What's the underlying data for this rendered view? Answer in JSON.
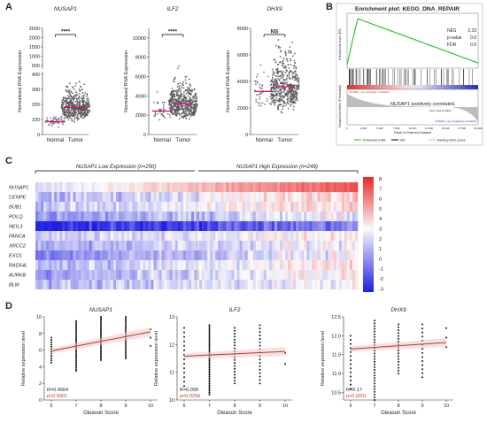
{
  "panels": {
    "A": "A",
    "B": "B",
    "C": "C",
    "D": "D"
  },
  "chart_data": [
    {
      "type": "scatter",
      "panel": "A",
      "title": "NUSAP1",
      "ylabel": "Normalized RNA Expression",
      "categories": [
        "Normal",
        "Tumor"
      ],
      "significance": "****",
      "yticks_upper": [
        "500",
        "1000",
        "1500",
        "2000",
        "2500"
      ],
      "yticks_lower": [
        "0",
        "100",
        "200",
        "300",
        "400"
      ],
      "medians": [
        95,
        180
      ]
    },
    {
      "type": "scatter",
      "panel": "A",
      "title": "ILF2",
      "ylabel": "Normalized RNA Expression",
      "categories": [
        "Normal",
        "Tumor"
      ],
      "significance": "****",
      "yticks": [
        "0",
        "2000",
        "4000",
        "6000",
        "8000",
        "10000"
      ],
      "ylim": [
        0,
        11000
      ],
      "medians": [
        2700,
        3200
      ]
    },
    {
      "type": "scatter",
      "panel": "A",
      "title": "DHX9",
      "ylabel": "Normalized RNA Expression",
      "categories": [
        "Normal",
        "Tumor"
      ],
      "significance": "NS",
      "yticks": [
        "0",
        "2000",
        "4000",
        "6000",
        "8000"
      ],
      "ylim": [
        0,
        8000
      ],
      "medians": [
        3600,
        3600
      ]
    },
    {
      "type": "line",
      "panel": "B",
      "title": "Enrichment plot: KEGG_DNA_REPAIR",
      "stats": [
        {
          "label": "NES",
          "value": "2.33"
        },
        {
          "label": "p-value",
          "value": "0.0"
        },
        {
          "label": "FDR",
          "value": "0.0"
        }
      ],
      "annotation": "NUSAP1 positively correlated.",
      "annotation_small": "Zero cross at 11110",
      "pos_label": "'NUSAP1_pos' (positively correlated)",
      "neg_label": "'NUSAP1_neg' (negatively correlated)",
      "ylabel_top": "Enrichment score (ES)",
      "ylabel_bottom": "Ranked list metric (Preranked)",
      "xlabel": "Rank in Ordered Dataset",
      "xticks": [
        "0",
        "2,500",
        "5,000",
        "7,500",
        "10,000",
        "12,500",
        "15,000",
        "17,500",
        "20,000"
      ],
      "legend": [
        "Enrichment profile",
        "Hits",
        "Ranking metric scores"
      ]
    },
    {
      "type": "heatmap",
      "panel": "C",
      "low_group": "NUSAP1 Low Expression (n=250)",
      "high_group": "NUSAP1 High Expression (n=249)",
      "rows": [
        "NUSAP1",
        "CENPE",
        "BUB1",
        "POLQ",
        "NEIL3",
        "FANCA",
        "XRCC2",
        "EXO1",
        "RAD54L",
        "AURKB",
        "BLM"
      ],
      "colorbar_ticks": [
        "8",
        "7",
        "6",
        "5",
        "4",
        "3",
        "2",
        "1",
        "0",
        "-1",
        "-2",
        "-3"
      ]
    },
    {
      "type": "scatter",
      "panel": "D",
      "title": "NUSAP1",
      "xlabel": "Gleason Score",
      "ylabel": "Relative expression level",
      "x": [
        6,
        7,
        8,
        9,
        10
      ],
      "xticks": [
        "6",
        "7",
        "8",
        "9",
        "10"
      ],
      "yticks": [
        "0",
        "2",
        "4",
        "6",
        "8",
        "10"
      ],
      "ylim": [
        0,
        10
      ],
      "r": "R=0.4564",
      "p": "p<0.0001"
    },
    {
      "type": "scatter",
      "panel": "D",
      "title": "ILF2",
      "xlabel": "Gleason Score",
      "ylabel": "Relative expression level",
      "x": [
        6,
        7,
        8,
        9,
        10
      ],
      "xticks": [
        "6",
        "7",
        "8",
        "9",
        "10"
      ],
      "yticks": [
        "10",
        "11",
        "12",
        "13"
      ],
      "ylim": [
        10,
        13
      ],
      "r": "R=0.099",
      "p": "p=0.0259"
    },
    {
      "type": "scatter",
      "panel": "D",
      "title": "DHX9",
      "xlabel": "Gleason Score",
      "ylabel": "Relative expression level",
      "x": [
        6,
        7,
        8,
        9,
        10
      ],
      "xticks": [
        "6",
        "7",
        "8",
        "9",
        "10"
      ],
      "yticks": [
        "10.5",
        "11.0",
        "11.5",
        "12.0",
        "12.5"
      ],
      "ylim": [
        10.3,
        12.5
      ],
      "r": "R=0.17",
      "p": "p<0.0001"
    }
  ]
}
